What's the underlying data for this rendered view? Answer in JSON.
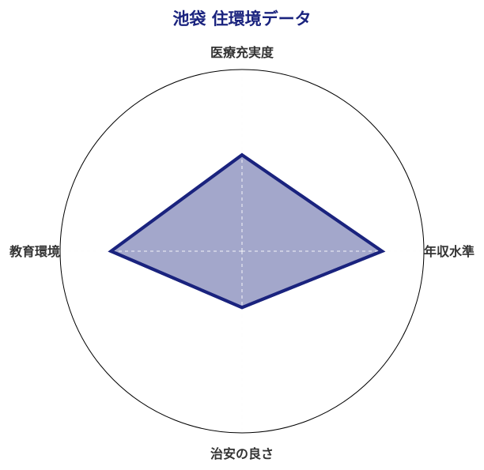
{
  "chart_data": {
    "type": "radar",
    "title": "池袋 住環境データ",
    "axes": [
      "医療充実度",
      "年収水準",
      "治安の良さ",
      "教育環境"
    ],
    "values": [
      53,
      77,
      31,
      72
    ],
    "range": [
      0,
      100
    ],
    "grid": true,
    "colors": {
      "line": "#1a237e",
      "fill": "#1a237e",
      "fill_opacity": 0.4,
      "title": "#1a237e"
    }
  }
}
